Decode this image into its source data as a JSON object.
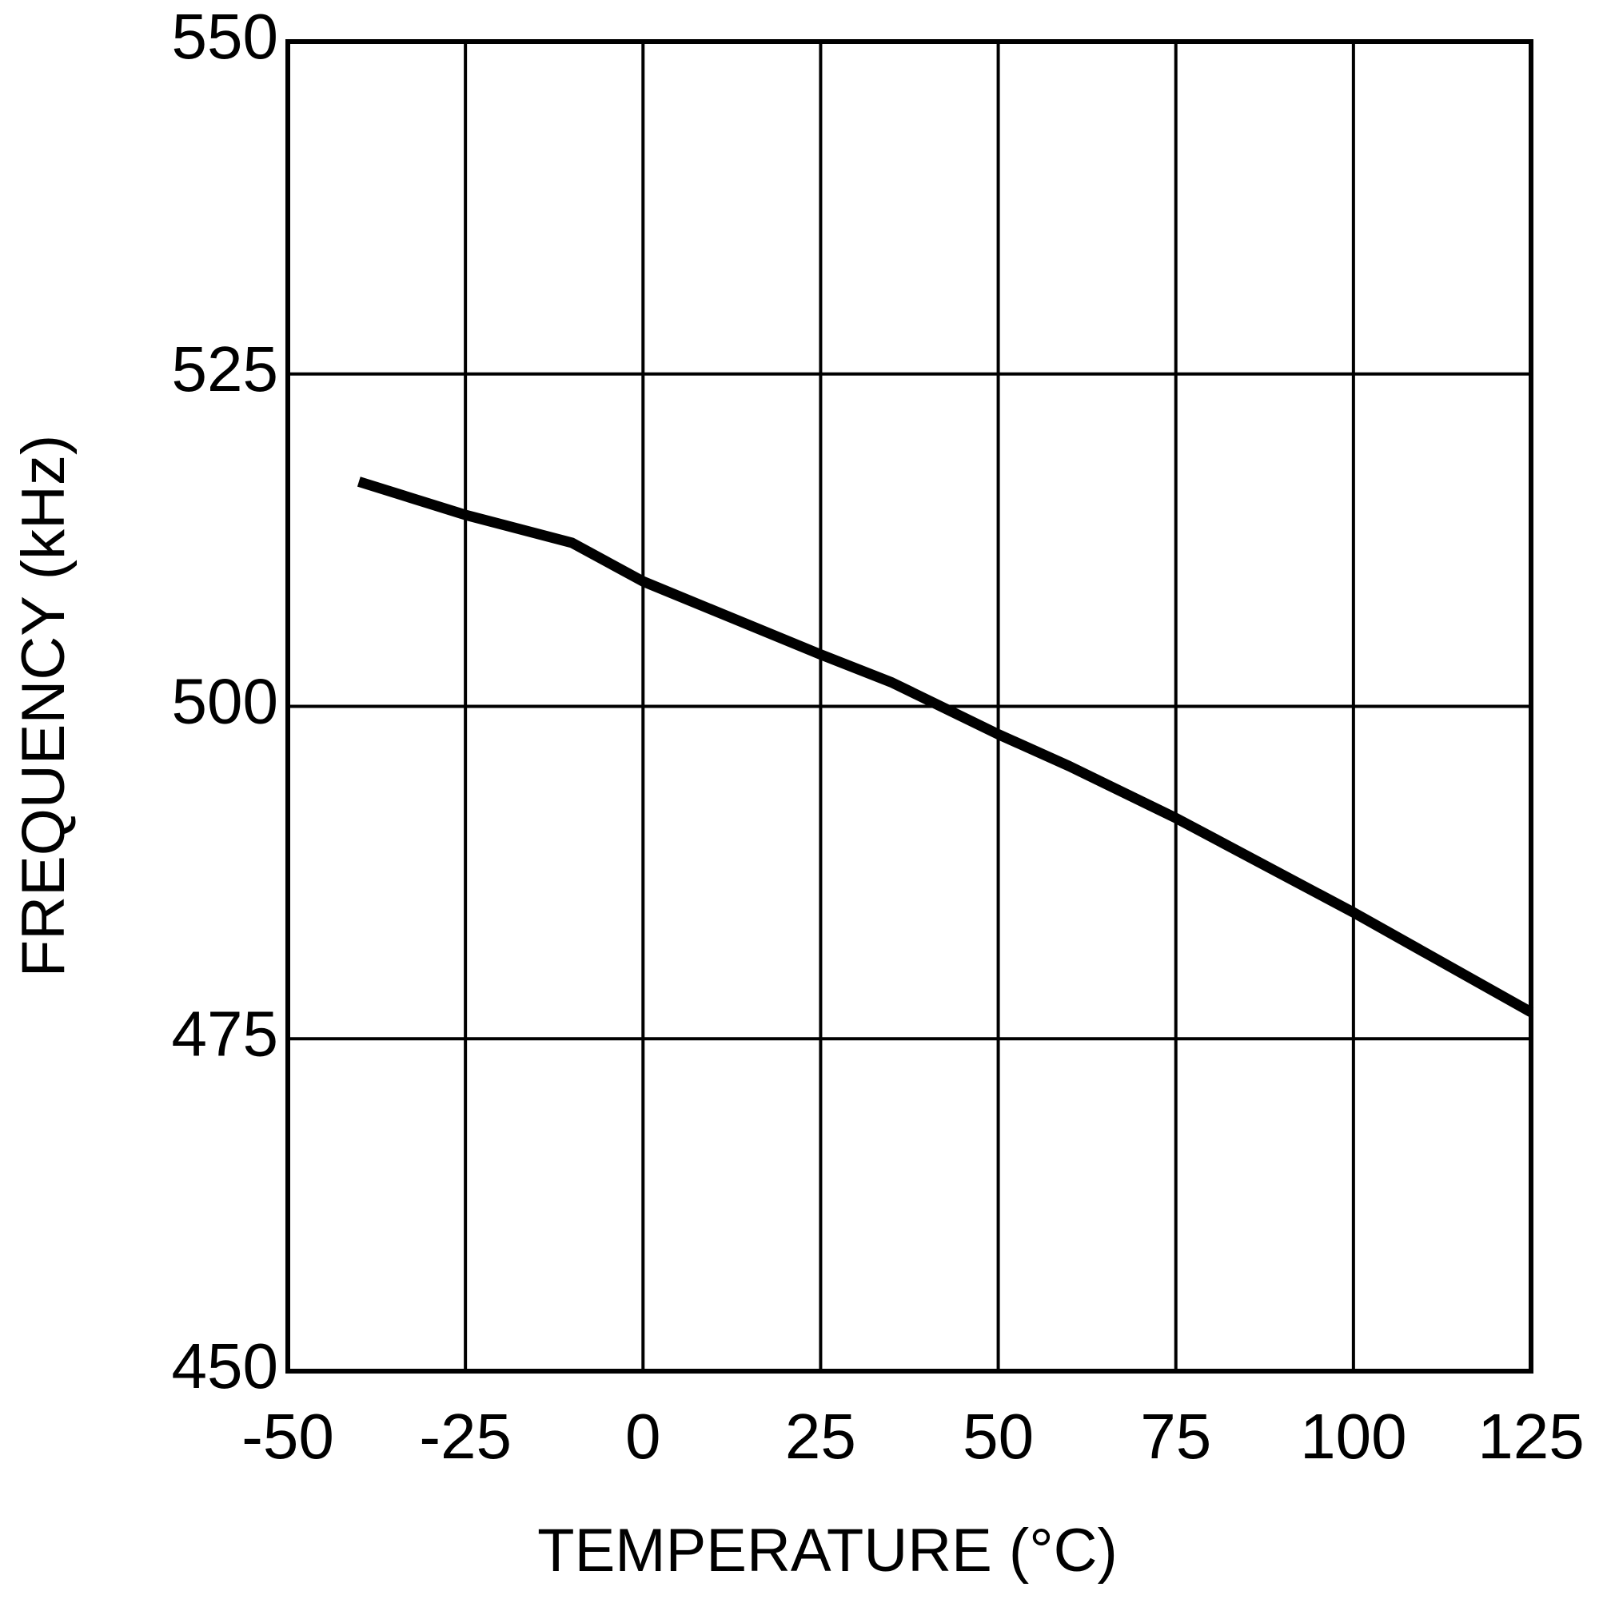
{
  "chart_data": {
    "type": "line",
    "x_label": "TEMPERATURE (°C)",
    "y_label": "FREQUENCY (kHz)",
    "x": [
      -40,
      -25,
      -10,
      0,
      10,
      25,
      35,
      50,
      60,
      75,
      100,
      125
    ],
    "series": [
      {
        "name": null,
        "color": "#000000",
        "values": [
          516.9,
          514.4,
          512.3,
          509.4,
          507.2,
          503.9,
          501.8,
          497.9,
          495.5,
          491.6,
          484.5,
          477.0
        ]
      }
    ],
    "xlim": [
      -50,
      125
    ],
    "xticks": [
      -50,
      -25,
      0,
      25,
      50,
      75,
      100,
      125
    ],
    "ylim": [
      450,
      550
    ],
    "yticks": [
      450,
      475,
      500,
      525,
      550
    ],
    "grid": true
  }
}
